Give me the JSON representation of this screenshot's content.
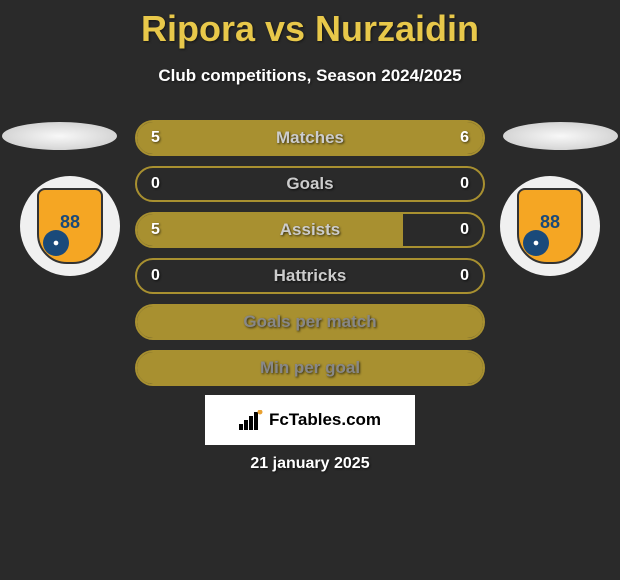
{
  "title": "Ripora vs Nurzaidin",
  "subtitle": "Club competitions, Season 2024/2025",
  "colors": {
    "accent": "#e8c84a",
    "bar_fill": "#a89030",
    "bar_border": "#a89030",
    "background": "#2a2a2a",
    "badge_orange": "#f5a623",
    "badge_blue": "#1a4a7a"
  },
  "badge_number": "88",
  "stats": [
    {
      "label": "Matches",
      "left_value": "5",
      "right_value": "6",
      "left_pct": 45,
      "right_pct": 55
    },
    {
      "label": "Goals",
      "left_value": "0",
      "right_value": "0",
      "left_pct": 0,
      "right_pct": 0
    },
    {
      "label": "Assists",
      "left_value": "5",
      "right_value": "0",
      "left_pct": 77,
      "right_pct": 0
    },
    {
      "label": "Hattricks",
      "left_value": "0",
      "right_value": "0",
      "left_pct": 0,
      "right_pct": 0
    },
    {
      "label": "Goals per match",
      "left_value": "",
      "right_value": "",
      "left_pct": 100,
      "right_pct": 0
    },
    {
      "label": "Min per goal",
      "left_value": "",
      "right_value": "",
      "left_pct": 100,
      "right_pct": 0
    }
  ],
  "footer": {
    "brand": "FcTables.com"
  },
  "date": "21 january 2025"
}
